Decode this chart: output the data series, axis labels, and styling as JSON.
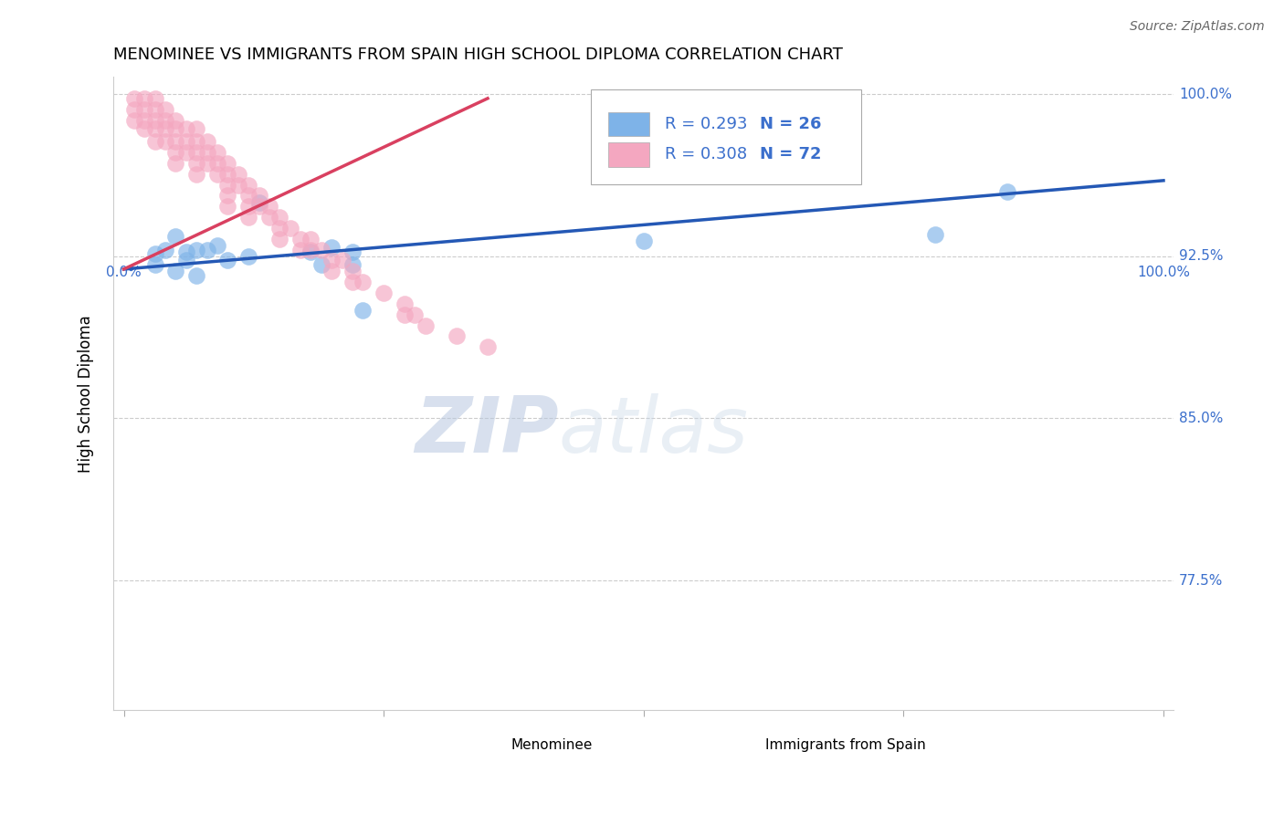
{
  "title": "MENOMINEE VS IMMIGRANTS FROM SPAIN HIGH SCHOOL DIPLOMA CORRELATION CHART",
  "source": "Source: ZipAtlas.com",
  "ylabel": "High School Diploma",
  "y_tick_labels": [
    "77.5%",
    "85.0%",
    "92.5%",
    "100.0%"
  ],
  "y_tick_values": [
    0.775,
    0.85,
    0.925,
    1.0
  ],
  "x_tick_values": [
    0.0,
    0.25,
    0.5,
    0.75,
    1.0
  ],
  "legend_blue_r": "R = 0.293",
  "legend_blue_n": "N = 26",
  "legend_pink_r": "R = 0.308",
  "legend_pink_n": "N = 72",
  "legend_blue_label": "Menominee",
  "legend_pink_label": "Immigrants from Spain",
  "blue_color": "#7EB3E8",
  "pink_color": "#F4A7C0",
  "blue_line_color": "#2458B5",
  "pink_line_color": "#D94060",
  "legend_r_color": "#3B6FCC",
  "blue_scatter_x": [
    0.03,
    0.03,
    0.04,
    0.05,
    0.05,
    0.06,
    0.06,
    0.07,
    0.07,
    0.08,
    0.09,
    0.1,
    0.12,
    0.13,
    0.18,
    0.19,
    0.2,
    0.22,
    0.22,
    0.23,
    0.5,
    0.55,
    0.6,
    0.65,
    0.78,
    0.85
  ],
  "blue_scatter_y": [
    0.926,
    0.921,
    0.928,
    0.934,
    0.918,
    0.927,
    0.923,
    0.916,
    0.928,
    0.928,
    0.93,
    0.923,
    0.925,
    0.95,
    0.927,
    0.921,
    0.929,
    0.927,
    0.921,
    0.9,
    0.932,
    0.965,
    0.962,
    0.962,
    0.935,
    0.955
  ],
  "pink_scatter_x": [
    0.01,
    0.01,
    0.01,
    0.02,
    0.02,
    0.02,
    0.02,
    0.03,
    0.03,
    0.03,
    0.03,
    0.03,
    0.04,
    0.04,
    0.04,
    0.04,
    0.05,
    0.05,
    0.05,
    0.05,
    0.05,
    0.06,
    0.06,
    0.06,
    0.07,
    0.07,
    0.07,
    0.07,
    0.07,
    0.08,
    0.08,
    0.08,
    0.09,
    0.09,
    0.09,
    0.1,
    0.1,
    0.1,
    0.1,
    0.1,
    0.11,
    0.11,
    0.12,
    0.12,
    0.12,
    0.12,
    0.13,
    0.13,
    0.14,
    0.14,
    0.15,
    0.15,
    0.15,
    0.16,
    0.17,
    0.17,
    0.18,
    0.18,
    0.19,
    0.2,
    0.2,
    0.21,
    0.22,
    0.22,
    0.23,
    0.25,
    0.27,
    0.27,
    0.28,
    0.29,
    0.32,
    0.35
  ],
  "pink_scatter_y": [
    0.998,
    0.993,
    0.988,
    0.998,
    0.993,
    0.988,
    0.984,
    0.998,
    0.993,
    0.988,
    0.984,
    0.978,
    0.993,
    0.988,
    0.984,
    0.978,
    0.988,
    0.984,
    0.978,
    0.973,
    0.968,
    0.984,
    0.978,
    0.973,
    0.984,
    0.978,
    0.973,
    0.968,
    0.963,
    0.978,
    0.973,
    0.968,
    0.973,
    0.968,
    0.963,
    0.968,
    0.963,
    0.958,
    0.953,
    0.948,
    0.963,
    0.958,
    0.958,
    0.953,
    0.948,
    0.943,
    0.953,
    0.948,
    0.948,
    0.943,
    0.943,
    0.938,
    0.933,
    0.938,
    0.933,
    0.928,
    0.933,
    0.928,
    0.928,
    0.923,
    0.918,
    0.923,
    0.918,
    0.913,
    0.913,
    0.908,
    0.903,
    0.898,
    0.898,
    0.893,
    0.888,
    0.883
  ],
  "blue_line_x0": 0.0,
  "blue_line_x1": 1.0,
  "blue_line_y0": 0.919,
  "blue_line_y1": 0.96,
  "pink_line_x0": 0.0,
  "pink_line_x1": 0.35,
  "pink_line_y0": 0.919,
  "pink_line_y1": 0.998,
  "ylim_min": 0.715,
  "ylim_max": 1.008,
  "xlim_min": -0.01,
  "xlim_max": 1.01,
  "watermark_zip": "ZIP",
  "watermark_atlas": "atlas",
  "title_fontsize": 13,
  "axis_label_fontsize": 12,
  "tick_fontsize": 11
}
